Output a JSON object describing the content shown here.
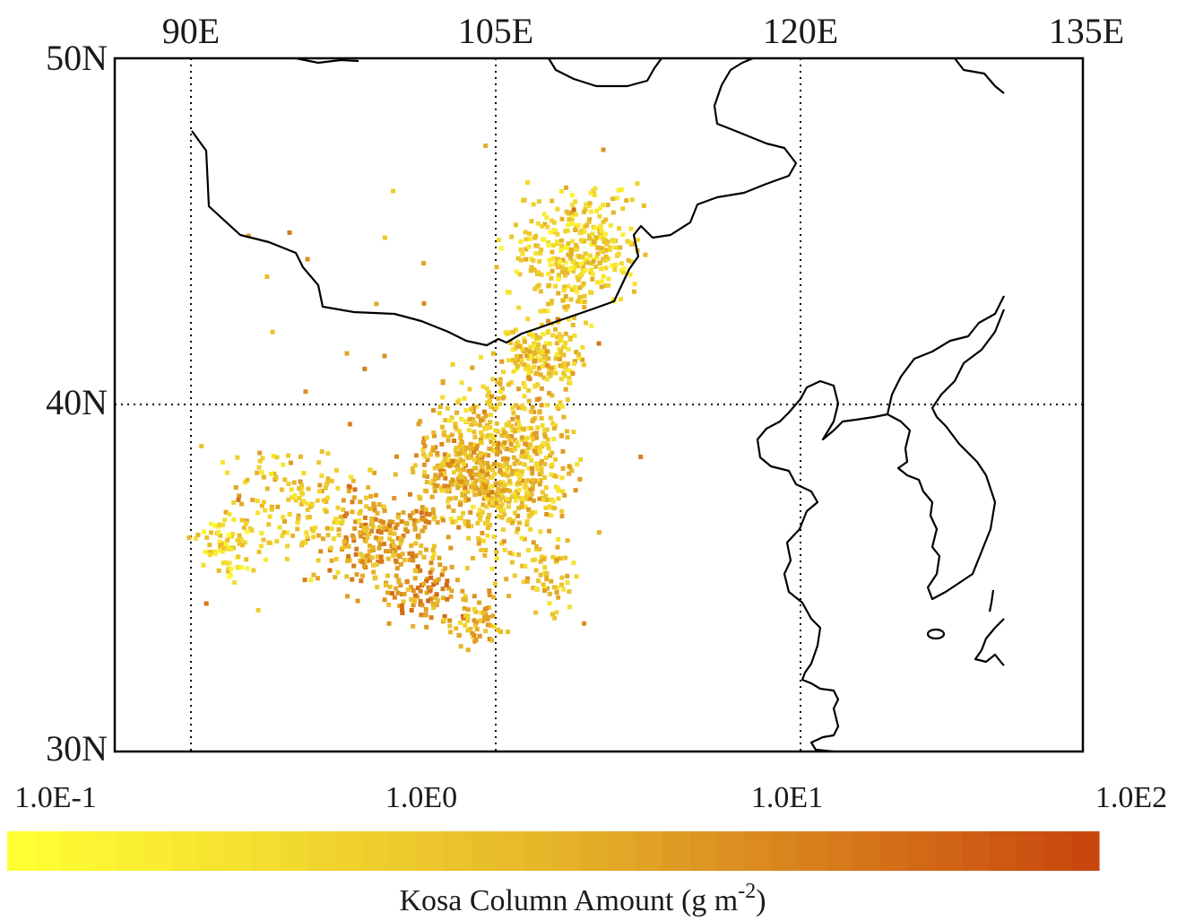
{
  "map": {
    "lon_labels": [
      "90E",
      "105E",
      "120E",
      "135E"
    ],
    "lat_labels": [
      "50N",
      "40N",
      "30N"
    ],
    "lon_range": [
      86,
      134
    ],
    "lat_range": [
      30,
      50
    ],
    "gridlines": "dotted",
    "coastline_color": "#000000"
  },
  "colorbar": {
    "tick_labels": [
      "1.0E-1",
      "1.0E0",
      "1.0E1",
      "1.0E2"
    ],
    "title_main": "Kosa Column Amount (g m",
    "title_exp": "-2",
    "title_end": ")",
    "color_low": "#ffff33",
    "color_mid": "#e6b52a",
    "color_high": "#c9470e",
    "scale": "log"
  }
}
